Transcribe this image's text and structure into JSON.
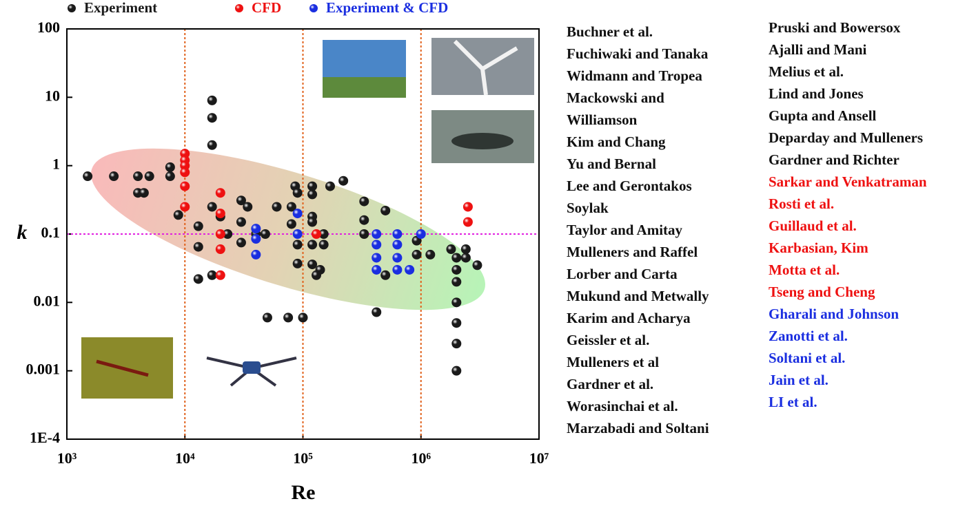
{
  "chart_data": {
    "type": "scatter",
    "x_label": "Re",
    "y_label": "k",
    "xlog": true,
    "ylog": true,
    "xlim": [
      1000,
      10000000
    ],
    "ylim": [
      0.0001,
      100
    ],
    "xticks": [
      {
        "value": 1000,
        "label": "10³"
      },
      {
        "value": 10000,
        "label": "10⁴"
      },
      {
        "value": 100000,
        "label": "10⁵"
      },
      {
        "value": 1000000,
        "label": "10⁶"
      },
      {
        "value": 10000000,
        "label": "10⁷"
      }
    ],
    "yticks": [
      {
        "value": 0.0001,
        "label": "1E-4"
      },
      0.001,
      0.01,
      0.1,
      1,
      10,
      100
    ],
    "vlines": [
      10000,
      100000,
      1000000
    ],
    "hlines": [
      0.1
    ],
    "legend": "top",
    "series": [
      {
        "name": "Experiment",
        "color": "#1a1a1a",
        "x": [
          1500,
          2500,
          4000,
          5000,
          4000,
          4500,
          7500,
          7500,
          8800,
          17000,
          17000,
          17000,
          17000,
          13000,
          13000,
          13000,
          17000,
          20000,
          23000,
          30000,
          34000,
          30000,
          30000,
          40000,
          48000,
          60000,
          80000,
          80000,
          86000,
          90000,
          90000,
          90000,
          120000,
          120000,
          120000,
          120000,
          120000,
          120000,
          150000,
          150000,
          140000,
          130000,
          170000,
          220000,
          330000,
          330000,
          330000,
          500000,
          420000,
          500000,
          920000,
          920000,
          1200000,
          1800000,
          2000000,
          2000000,
          2000000,
          2000000,
          2000000,
          2000000,
          2000000,
          2400000,
          2400000,
          3000000,
          50000,
          75000,
          100000
        ],
        "values": [
          0.7,
          0.7,
          0.7,
          0.7,
          0.4,
          0.4,
          0.95,
          0.7,
          0.19,
          9,
          5,
          2,
          0.25,
          0.13,
          0.065,
          0.022,
          0.025,
          0.18,
          0.1,
          0.31,
          0.25,
          0.15,
          0.075,
          0.1,
          0.1,
          0.25,
          0.25,
          0.14,
          0.5,
          0.4,
          0.07,
          0.037,
          0.5,
          0.38,
          0.18,
          0.15,
          0.07,
          0.036,
          0.1,
          0.07,
          0.03,
          0.025,
          0.5,
          0.6,
          0.3,
          0.16,
          0.1,
          0.22,
          0.0072,
          0.025,
          0.08,
          0.05,
          0.05,
          0.06,
          0.045,
          0.03,
          0.02,
          0.01,
          0.005,
          0.0025,
          0.001,
          0.06,
          0.045,
          0.035,
          0.006,
          0.006,
          0.006
        ]
      },
      {
        "name": "CFD",
        "color": "#ee1111",
        "x": [
          10000,
          10000,
          10000,
          10000,
          10000,
          10000,
          20000,
          20000,
          20000,
          20000,
          20000,
          130000,
          2500000,
          2500000
        ],
        "values": [
          1.5,
          1.2,
          1.0,
          0.8,
          0.5,
          0.25,
          0.4,
          0.2,
          0.1,
          0.06,
          0.025,
          0.1,
          0.25,
          0.15
        ]
      },
      {
        "name": "Experiment & CFD",
        "color": "#1a2ee0",
        "x": [
          40000,
          40000,
          40000,
          90000,
          90000,
          420000,
          420000,
          420000,
          420000,
          630000,
          630000,
          630000,
          630000,
          800000,
          1000000
        ],
        "values": [
          0.12,
          0.085,
          0.05,
          0.2,
          0.1,
          0.1,
          0.07,
          0.045,
          0.03,
          0.1,
          0.07,
          0.045,
          0.03,
          0.03,
          0.1
        ]
      }
    ]
  },
  "references": [
    [
      {
        "color": "#111111",
        "items": [
          "Buchner et al.",
          "Fuchiwaki and Tanaka",
          "Widmann and Tropea",
          "Mackowski and",
          "Williamson",
          "Kim and Chang",
          "Yu and  Bernal",
          "Lee and Gerontakos",
          "Soylak",
          "Taylor and Amitay",
          "Mulleners and Raffel",
          "Lorber and Carta",
          "Mukund and Metwally",
          "Karim and Acharya",
          "Geissler et al.",
          "Mulleners et al",
          "Gardner et al.",
          "Worasinchai et al.",
          "Marzabadi and Soltani"
        ]
      }
    ],
    [
      {
        "color": "#111111",
        "items": [
          "Pruski and Bowersox",
          "Ajalli and Mani",
          "Melius et al.",
          "Lind and Jones",
          "Gupta and Ansell",
          "Deparday and Mulleners",
          "Gardner and Richter"
        ]
      },
      {
        "color": "#ee1111",
        "items": [
          "Sarkar and  Venkatraman",
          "Rosti et al.",
          "Guillaud et al.",
          "Karbasian, Kim",
          "Motta et al.",
          "Tseng and Cheng"
        ]
      },
      {
        "color": "#1a2ee0",
        "items": [
          "Gharali and Johnson",
          "Zanotti et al.",
          "Soltani et al.",
          "Jain et al.",
          "LI et al."
        ]
      }
    ]
  ]
}
